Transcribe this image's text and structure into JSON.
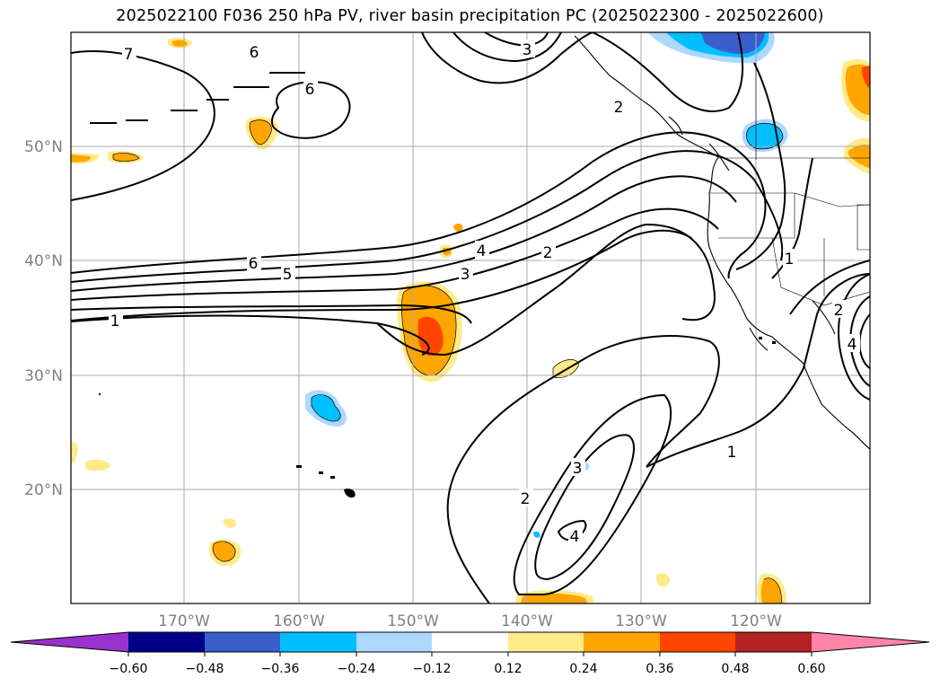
{
  "title": "2025022100 F036 250 hPa PV, river basin precipitation PC (2025022300 - 2025022600)",
  "lat_labels": [
    "50°N",
    "40°N",
    "30°N",
    "20°N"
  ],
  "lon_labels": [
    "170°W",
    "160°W",
    "150°W",
    "140°W",
    "130°W",
    "120°W"
  ],
  "contour_labels": [
    "7",
    "6",
    "6",
    "3",
    "6",
    "5",
    "4",
    "3",
    "2",
    "1",
    "1",
    "2",
    "2",
    "3",
    "4",
    "1",
    "2",
    "4"
  ],
  "colorbar": {
    "ticks": [
      "−0.60",
      "−0.48",
      "−0.36",
      "−0.24",
      "−0.12",
      "0.12",
      "0.24",
      "0.36",
      "0.48",
      "0.60"
    ],
    "colors": [
      "#9932cc",
      "#00008b",
      "#3a5fcd",
      "#00bfff",
      "#add8ff",
      "#ffffff",
      "#ffea8a",
      "#ffa500",
      "#ff4500",
      "#b22222",
      "#ff86a8"
    ]
  }
}
